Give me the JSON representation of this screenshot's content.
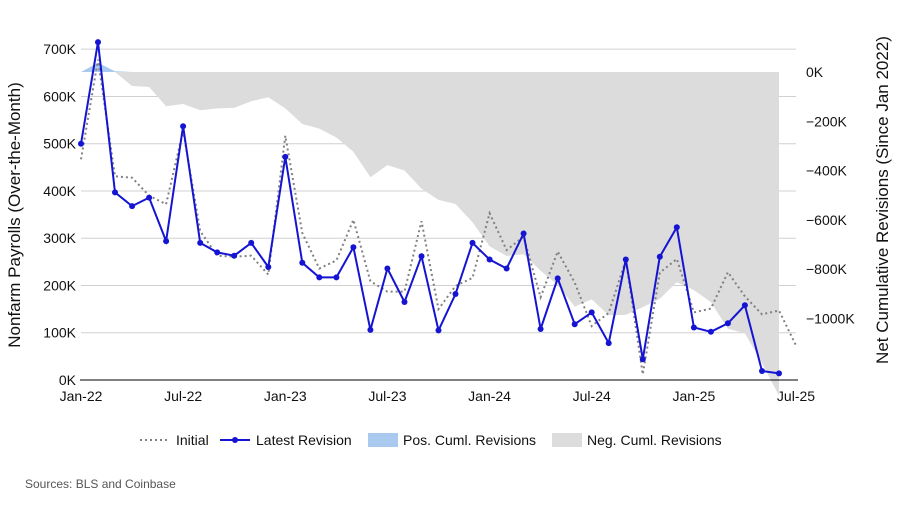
{
  "chart_data": {
    "type": "line",
    "x_labels": [
      "Jan-22",
      "Jul-22",
      "Jan-23",
      "Jul-23",
      "Jan-24",
      "Jul-24",
      "Jan-25",
      "Jul-25"
    ],
    "x_label_months": [
      0,
      6,
      12,
      18,
      24,
      30,
      36,
      42
    ],
    "left_axis": {
      "label": "Nonfarm Payrolls (Over-the-Month)",
      "ylim": [
        0,
        730000
      ],
      "ticks": [
        0,
        100000,
        200000,
        300000,
        400000,
        500000,
        600000,
        700000
      ],
      "tick_labels": [
        "0K",
        "100K",
        "200K",
        "300K",
        "400K",
        "500K",
        "600K",
        "700K"
      ]
    },
    "right_axis": {
      "label": "Net Cumulative Revisions (Since Jan 2022)",
      "ylim": [
        -1250000,
        150000
      ],
      "ticks": [
        0,
        -200000,
        -400000,
        -600000,
        -800000,
        -1000000
      ],
      "tick_labels": [
        "0K",
        "−200K",
        "−400K",
        "−600K",
        "−800K",
        "−1000K"
      ]
    },
    "grid": true,
    "legend_position": "bottom",
    "series": [
      {
        "name": "Initial",
        "axis": "left",
        "style": "dotted",
        "color": "#808080",
        "values": [
          467000,
          678000,
          431000,
          428000,
          390000,
          372000,
          528000,
          315000,
          263000,
          261000,
          263000,
          223000,
          517000,
          311000,
          236000,
          253000,
          339000,
          209000,
          187000,
          187000,
          336000,
          150000,
          199000,
          216000,
          353000,
          275000,
          303000,
          175000,
          272000,
          206000,
          114000,
          142000,
          254000,
          12000,
          227000,
          256000,
          143000,
          151000,
          228000,
          177000,
          139000,
          147000,
          73000
        ]
      },
      {
        "name": "Latest Revision",
        "axis": "left",
        "style": "solid-markers",
        "color": "#1414d2",
        "values": [
          500000,
          715000,
          397000,
          368000,
          386000,
          294000,
          537000,
          290000,
          270000,
          263000,
          290000,
          239000,
          472000,
          248000,
          217000,
          217000,
          281000,
          106000,
          236000,
          165000,
          262000,
          105000,
          182000,
          290000,
          255000,
          236000,
          310000,
          108000,
          215000,
          118000,
          143000,
          78000,
          255000,
          44000,
          261000,
          323000,
          111000,
          102000,
          120000,
          158000,
          19000,
          14000
        ]
      },
      {
        "name": "Pos. Cuml. Revisions",
        "axis": "right",
        "style": "area",
        "color": "#a9c9ef"
      },
      {
        "name": "Neg. Cuml. Revisions",
        "axis": "right",
        "style": "area",
        "color": "#dcdcdc"
      }
    ],
    "cumulative_revisions": [
      0,
      37000,
      3000,
      -57000,
      -61000,
      -139000,
      -130000,
      -155000,
      -148000,
      -146000,
      -119000,
      -103000,
      -148000,
      -211000,
      -230000,
      -266000,
      -324000,
      -427000,
      -378000,
      -400000,
      -474000,
      -519000,
      -536000,
      -610000,
      -708000,
      -747000,
      -740000,
      -807000,
      -864000,
      -952000,
      -923000,
      -987000,
      -986000,
      -954000,
      -920000,
      -853000,
      -885000,
      -934000,
      -1042000,
      -1061000,
      -1181000,
      -1314000
    ]
  },
  "legend": {
    "initial": "Initial",
    "latest": "Latest Revision",
    "pos": "Pos. Cuml. Revisions",
    "neg": "Neg. Cuml. Revisions"
  },
  "source": "Sources: BLS and Coinbase",
  "colors": {
    "latest": "#1414d2",
    "initial": "#808080",
    "pos_area": "#a9c9ef",
    "neg_area": "#dcdcdc",
    "grid": "#d0d0d0"
  }
}
